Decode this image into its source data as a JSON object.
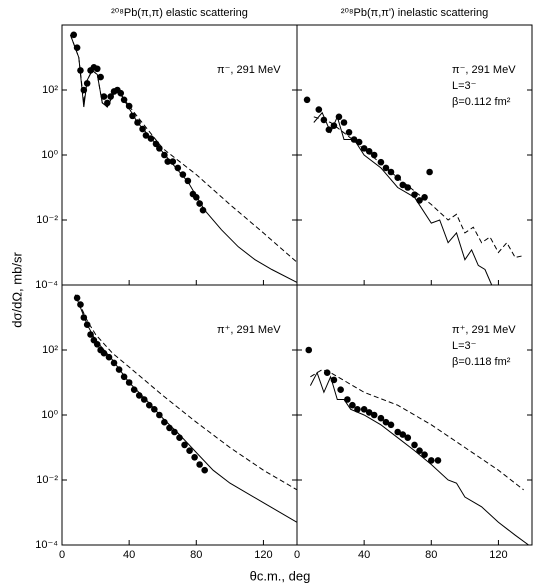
{
  "figure": {
    "xlabel": "θc.m., deg",
    "ylabel": "dσ/dΩ, mb/sr"
  },
  "chart_data": [
    {
      "type": "line",
      "title": "²⁰⁸Pb(π,π) elastic scattering",
      "annotations": [
        "π⁻, 291 MeV"
      ],
      "xlim": [
        0,
        140
      ],
      "xticks": [
        0,
        40,
        80,
        120
      ],
      "xtick_labels": false,
      "ylim": [
        0.0001,
        10000
      ],
      "ylog": true,
      "yticks": [
        {
          "value": 0.0001,
          "label": "10⁻⁴"
        },
        {
          "value": 0.01,
          "label": "10⁻²"
        },
        {
          "value": 1,
          "label": "10⁰"
        },
        {
          "value": 100,
          "label": "10²"
        }
      ],
      "series": [
        {
          "style": "markers",
          "color": "#000000",
          "x": [
            7,
            9,
            11,
            13,
            15,
            17,
            19,
            21,
            23,
            25,
            27,
            29,
            31,
            33,
            35,
            37,
            40,
            42,
            45,
            48,
            50,
            53,
            56,
            58,
            61,
            63,
            66,
            69,
            72,
            75,
            78,
            80,
            82,
            84
          ],
          "values": [
            5000,
            2000,
            400,
            100,
            160,
            400,
            500,
            450,
            250,
            63,
            40,
            63,
            90,
            100,
            80,
            50,
            32,
            16,
            10,
            6.3,
            4,
            3.2,
            2.2,
            1.6,
            1,
            0.63,
            0.63,
            0.4,
            0.25,
            0.16,
            0.063,
            0.05,
            0.032,
            0.02
          ]
        },
        {
          "style": "solid",
          "color": "#000000",
          "x": [
            5,
            10,
            13,
            15,
            18,
            21,
            24,
            27,
            31,
            34,
            38,
            45,
            55,
            65,
            75,
            85,
            95,
            105,
            115,
            125,
            140
          ],
          "values": [
            5000,
            1000,
            30,
            200,
            400,
            300,
            40,
            30,
            80,
            90,
            40,
            10,
            2.5,
            0.6,
            0.15,
            0.02,
            0.005,
            0.0015,
            0.0006,
            0.0003,
            0.00012
          ]
        },
        {
          "style": "dashed",
          "color": "#000000",
          "x": [
            5,
            10,
            13,
            15,
            18,
            21,
            24,
            27,
            31,
            34,
            40,
            60,
            80,
            100,
            120,
            140
          ],
          "values": [
            5000,
            1000,
            40,
            200,
            400,
            300,
            40,
            30,
            80,
            90,
            32,
            1.6,
            0.25,
            0.03,
            0.004,
            0.0005
          ]
        }
      ]
    },
    {
      "type": "line",
      "title": "²⁰⁸Pb(π,π') inelastic scattering",
      "annotations": [
        "π⁻, 291 MeV",
        "L=3⁻",
        "β=0.112 fm²"
      ],
      "xlim": [
        0,
        140
      ],
      "xticks": [
        0,
        40,
        80,
        120
      ],
      "xtick_labels": false,
      "ylim": [
        0.0001,
        10000
      ],
      "ylog": true,
      "yticks": [
        0.0001,
        0.01,
        1,
        100
      ],
      "ytick_labels": false,
      "series": [
        {
          "style": "markers",
          "color": "#000000",
          "x": [
            6,
            13,
            16,
            19,
            22,
            25,
            28,
            31,
            34,
            37,
            40,
            43,
            46,
            50,
            53,
            56,
            60,
            63,
            66,
            70,
            73,
            76,
            79
          ],
          "values": [
            50,
            25,
            12,
            6,
            8,
            15,
            10,
            5,
            3,
            2.5,
            1.6,
            1.3,
            1,
            0.6,
            0.4,
            0.3,
            0.2,
            0.12,
            0.1,
            0.06,
            0.04,
            0.05,
            0.3
          ]
        },
        {
          "style": "solid",
          "color": "#000000",
          "x": [
            10,
            15,
            20,
            24,
            28,
            34,
            40,
            50,
            60,
            70,
            80,
            85,
            90,
            95,
            100,
            104,
            108,
            112,
            116
          ],
          "values": [
            10,
            20,
            5,
            15,
            3,
            3,
            1,
            0.4,
            0.1,
            0.05,
            0.008,
            0.01,
            0.002,
            0.004,
            0.0006,
            0.0012,
            0.0004,
            0.0003,
            0.0001
          ]
        },
        {
          "style": "dashed",
          "color": "#000000",
          "x": [
            10,
            20,
            30,
            40,
            60,
            80,
            90,
            95,
            100,
            105,
            110,
            115,
            120,
            125,
            130,
            135
          ],
          "values": [
            15,
            10,
            4,
            1.5,
            0.2,
            0.03,
            0.01,
            0.015,
            0.004,
            0.006,
            0.002,
            0.003,
            0.001,
            0.002,
            0.0007,
            0.0008
          ]
        }
      ]
    },
    {
      "type": "line",
      "annotations": [
        "π⁺, 291 MeV"
      ],
      "xlim": [
        0,
        140
      ],
      "xticks": [
        0,
        40,
        80,
        120
      ],
      "xtick_labels": true,
      "ylim": [
        0.0001,
        10000
      ],
      "ylog": true,
      "yticks": [
        {
          "value": 0.0001,
          "label": "10⁻⁴"
        },
        {
          "value": 0.01,
          "label": "10⁻²"
        },
        {
          "value": 1,
          "label": "10⁰"
        },
        {
          "value": 100,
          "label": "10²"
        }
      ],
      "series": [
        {
          "style": "markers",
          "color": "#000000",
          "x": [
            9,
            11,
            13,
            15,
            17,
            19,
            21,
            23,
            25,
            28,
            31,
            34,
            37,
            40,
            43,
            46,
            49,
            52,
            55,
            58,
            61,
            64,
            67,
            70,
            73,
            76,
            79,
            82,
            85
          ],
          "values": [
            4000,
            2500,
            1000,
            600,
            300,
            200,
            150,
            100,
            80,
            60,
            40,
            25,
            15,
            10,
            6,
            4,
            3,
            2,
            1.5,
            1,
            0.6,
            0.4,
            0.3,
            0.2,
            0.12,
            0.08,
            0.05,
            0.03,
            0.02
          ]
        },
        {
          "style": "solid",
          "color": "#000000",
          "x": [
            8,
            15,
            20,
            30,
            40,
            50,
            60,
            70,
            80,
            90,
            100,
            120,
            140
          ],
          "values": [
            5000,
            600,
            200,
            50,
            10,
            3,
            0.8,
            0.25,
            0.07,
            0.02,
            0.008,
            0.002,
            0.0005
          ]
        },
        {
          "style": "dashed",
          "color": "#000000",
          "x": [
            8,
            15,
            20,
            30,
            40,
            60,
            80,
            100,
            120,
            140
          ],
          "values": [
            5000,
            800,
            300,
            80,
            30,
            4,
            0.6,
            0.1,
            0.02,
            0.005
          ]
        }
      ]
    },
    {
      "type": "line",
      "annotations": [
        "π⁺, 291 MeV",
        "L=3⁻",
        "β=0.118 fm²"
      ],
      "xlim": [
        0,
        140
      ],
      "xticks": [
        0,
        40,
        80,
        120
      ],
      "xtick_labels": true,
      "ylim": [
        0.0001,
        10000
      ],
      "ylog": true,
      "yticks": [
        0.0001,
        0.01,
        1,
        100
      ],
      "ytick_labels": false,
      "series": [
        {
          "style": "markers",
          "color": "#000000",
          "x": [
            7,
            18,
            22,
            26,
            30,
            33,
            36,
            40,
            43,
            46,
            50,
            53,
            56,
            60,
            63,
            66,
            70,
            73,
            76,
            80,
            84
          ],
          "values": [
            100,
            20,
            12,
            6,
            3,
            2,
            1.5,
            1.5,
            1.2,
            1,
            0.8,
            0.6,
            0.5,
            0.3,
            0.25,
            0.2,
            0.12,
            0.08,
            0.06,
            0.04,
            0.04
          ]
        },
        {
          "style": "solid",
          "color": "#000000",
          "x": [
            8,
            12,
            16,
            20,
            24,
            28,
            32,
            40,
            50,
            60,
            70,
            80,
            90,
            95,
            100,
            110,
            120,
            130,
            138
          ],
          "values": [
            8,
            20,
            5,
            15,
            3,
            3,
            1.5,
            1,
            0.5,
            0.2,
            0.08,
            0.03,
            0.01,
            0.008,
            0.003,
            0.0015,
            0.0005,
            0.0002,
            0.0001
          ]
        },
        {
          "style": "dashed",
          "color": "#000000",
          "x": [
            8,
            15,
            20,
            30,
            40,
            60,
            80,
            100,
            120,
            135
          ],
          "values": [
            15,
            25,
            20,
            10,
            5,
            2,
            0.5,
            0.1,
            0.02,
            0.005
          ]
        }
      ]
    }
  ]
}
